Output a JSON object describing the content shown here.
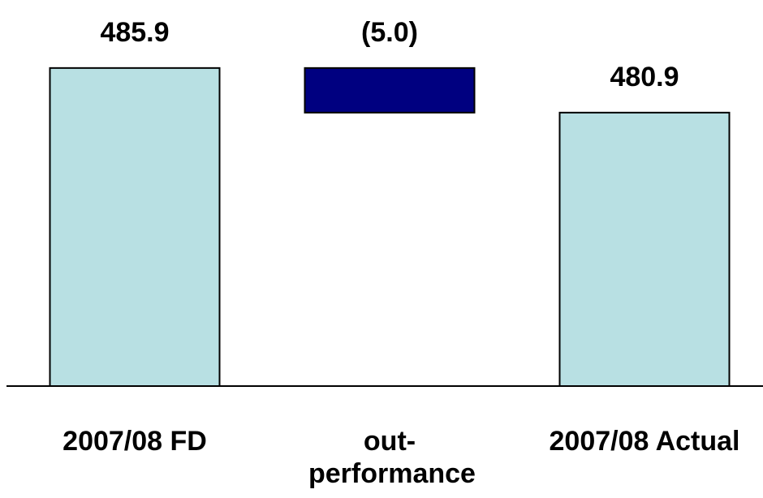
{
  "chart_data": {
    "type": "bar",
    "subtype": "waterfall",
    "categories": [
      "2007/08 FD",
      "out-performance",
      "2007/08 Actual"
    ],
    "values": [
      485.9,
      -5.0,
      480.9
    ],
    "data_labels": [
      "485.9",
      "(5.0)",
      "480.9"
    ],
    "bar_kind": [
      "total",
      "delta",
      "total"
    ],
    "title": "",
    "xlabel": "",
    "ylabel": "",
    "grid": false,
    "legend": "none",
    "colors": {
      "total": "#b8e0e3",
      "delta": "#000080",
      "edge": "#000000"
    }
  }
}
